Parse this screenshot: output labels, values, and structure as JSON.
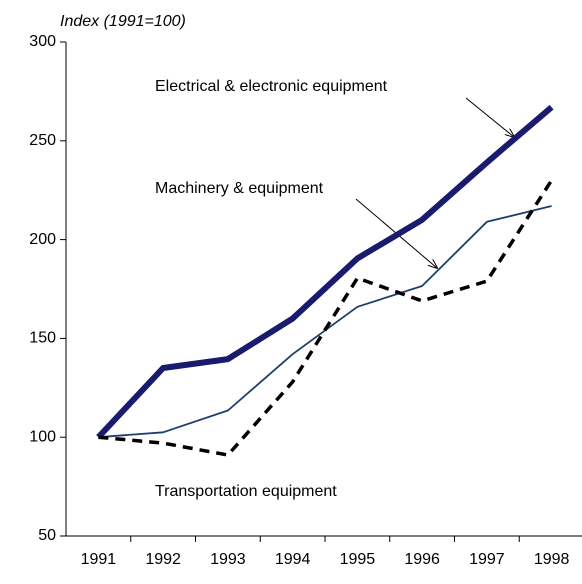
{
  "chart_data": {
    "type": "line",
    "y_axis_label": "Index (1991=100)",
    "categories": [
      "1991",
      "1992",
      "1993",
      "1994",
      "1995",
      "1996",
      "1997",
      "1998"
    ],
    "series": [
      {
        "name": "Electrical & electronic equipment",
        "color": "#1a1a6e",
        "width": 6,
        "dashed": false,
        "values": [
          100,
          135,
          139.5,
          160,
          190.5,
          210,
          239,
          267
        ]
      },
      {
        "name": "Machinery & equipment",
        "color": "#1f3f6a",
        "width": 1.8,
        "dashed": false,
        "values": [
          100,
          102.5,
          113.5,
          142,
          166,
          176.5,
          209,
          217
        ]
      },
      {
        "name": "Transportation equipment",
        "color": "#000000",
        "width": 3.5,
        "dashed": true,
        "values": [
          100,
          97,
          91,
          128,
          180.5,
          169,
          179,
          230
        ]
      }
    ],
    "ylim": [
      50,
      300
    ],
    "yticks": [
      50,
      100,
      150,
      200,
      250,
      300
    ]
  }
}
